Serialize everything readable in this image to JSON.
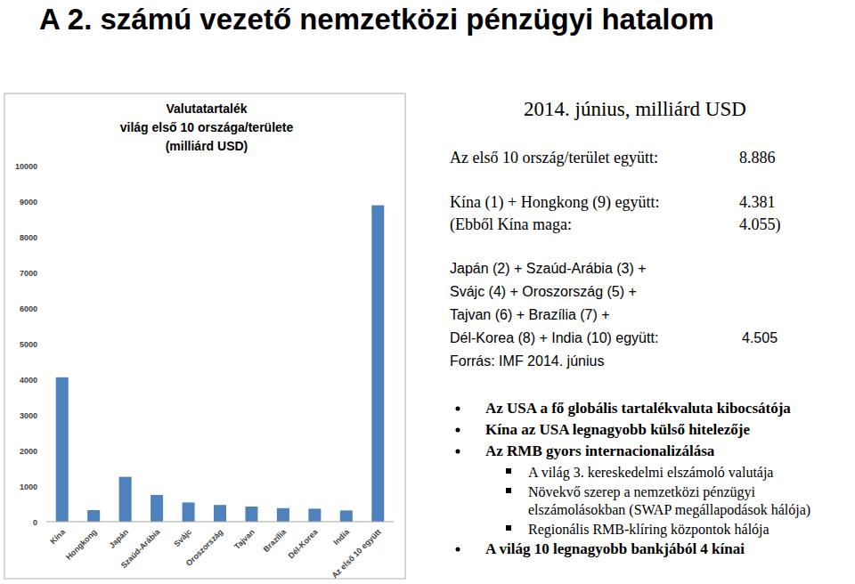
{
  "page": {
    "title": "A 2. számú vezető nemzetközi pénzügyi hatalom",
    "heading": "2014. június, milliárd USD",
    "rows": [
      {
        "label": "Az első 10 ország/terület együtt:",
        "value": "8.886"
      },
      {
        "label": "Kína (1) + Hongkong (9) együtt:",
        "value": "4.381"
      },
      {
        "label": "(Ebből Kína maga:",
        "value": "4.055)"
      }
    ],
    "group": {
      "lines": [
        "Japán (2) + Szaúd-Arábia (3) +",
        "Svájc (4) + Oroszország (5) +",
        "Tajvan (6) + Brazília (7) +",
        "Dél-Korea (8) + India (10) együtt:"
      ],
      "value": "4.505"
    },
    "source": "Forrás: IMF 2014. június",
    "bullets": [
      {
        "text": "Az USA a fő globális tartalékvaluta kibocsátója",
        "sub": []
      },
      {
        "text": "Kína az USA legnagyobb külső hitelezője",
        "sub": []
      },
      {
        "text": "Az RMB gyors internacionalizálása",
        "sub": [
          [
            "A világ 3. kereskedelmi elszámoló valutája"
          ],
          [
            "Növekvő szerep a nemzetközi pénzügyi",
            "elszámolásokban (SWAP megállapodások hálója)"
          ],
          [
            "Regionális RMB-klíring központok hálója"
          ]
        ]
      },
      {
        "text": "A világ 10 legnagyobb bankjából 4 kínai",
        "sub": []
      }
    ]
  },
  "chart_data": {
    "type": "bar",
    "title": [
      "Valutatartalék",
      "világ első 10 országa/területe",
      "(milliárd USD)"
    ],
    "categories": [
      "Kína",
      "Hongkong",
      "Japán",
      "Szaúd-Arábia",
      "Svájc",
      "Oroszország",
      "Tajvan",
      "Brazília",
      "Dél-Korea",
      "India",
      "Az első 10 együtt"
    ],
    "values": [
      4055,
      326,
      1260,
      750,
      540,
      470,
      425,
      380,
      365,
      315,
      8886
    ],
    "color": "#4f81bd",
    "ylim": [
      0,
      10000
    ],
    "yticks": [
      0,
      1000,
      2000,
      3000,
      4000,
      5000,
      6000,
      7000,
      8000,
      9000,
      10000
    ],
    "grid": false
  }
}
